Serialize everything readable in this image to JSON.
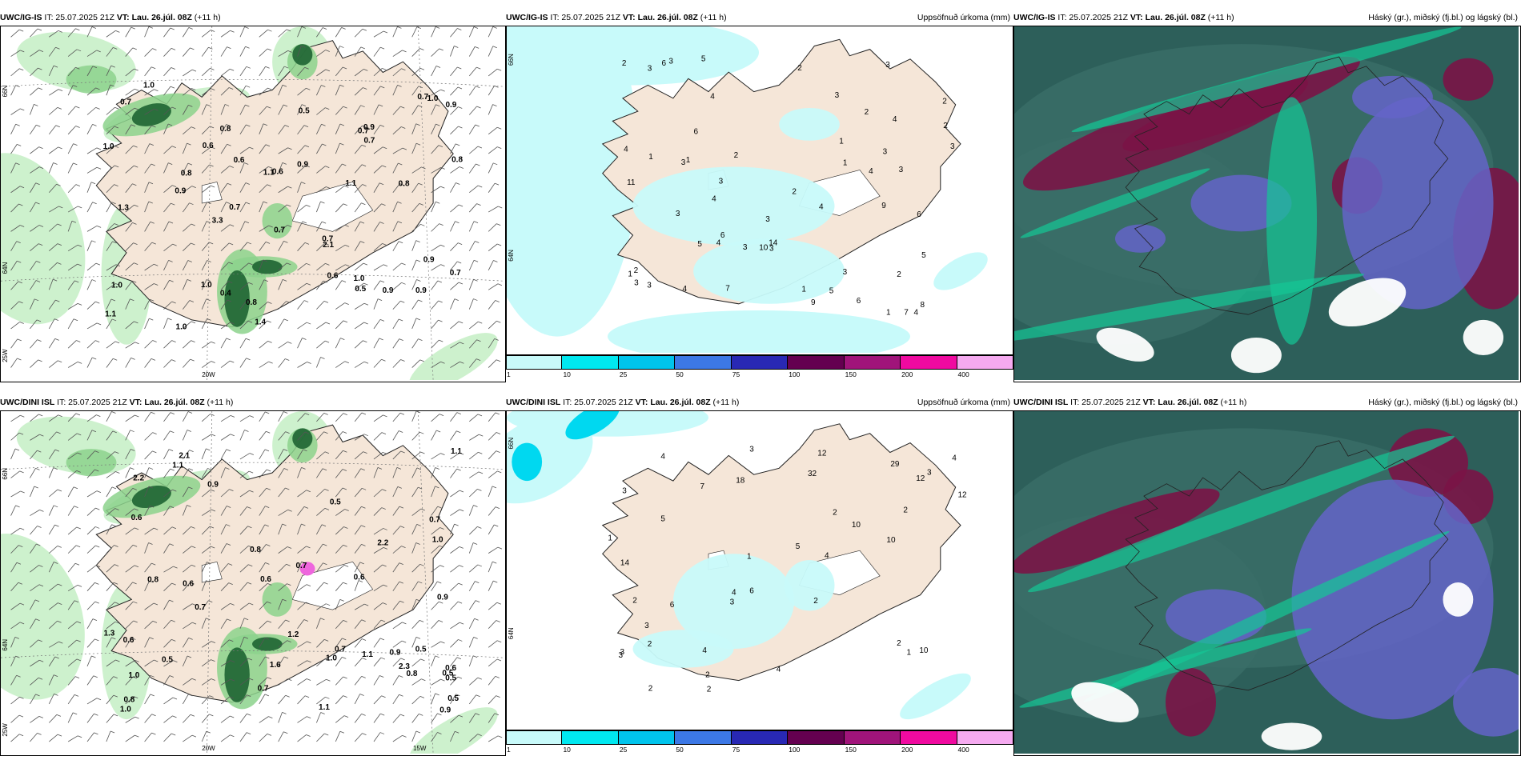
{
  "panels": [
    {
      "model": "UWC/IG-IS",
      "it": "IT: 25.07.2025 21Z",
      "vt_label": "VT:",
      "vt_value": "Lau. 26.júl. 08Z",
      "offset": "(+11 h)",
      "title": ""
    },
    {
      "model": "UWC/IG-IS",
      "it": "IT: 25.07.2025 21Z",
      "vt_label": "VT:",
      "vt_value": "Lau. 26.júl. 08Z",
      "offset": "(+11 h)",
      "title": "Uppsöfnuð úrkoma (mm)"
    },
    {
      "model": "UWC/IG-IS",
      "it": "IT: 25.07.2025 21Z",
      "vt_label": "VT:",
      "vt_value": "Lau. 26.júl. 08Z",
      "offset": "(+11 h)",
      "title": "Háský (gr.), miðský (fj.bl.) og lágský (bl.)"
    },
    {
      "model": "UWC/DINI ISL",
      "it": "IT: 25.07.2025 21Z",
      "vt_label": "VT:",
      "vt_value": "Lau. 26.júl. 08Z",
      "offset": "(+11 h)",
      "title": ""
    },
    {
      "model": "UWC/DINI ISL",
      "it": "IT: 25.07.2025 21Z",
      "vt_label": "VT:",
      "vt_value": "Lau. 26.júl. 08Z",
      "offset": "(+11 h)",
      "title": "Uppsöfnuð úrkoma (mm)"
    },
    {
      "model": "UWC/DINI ISL",
      "it": "IT: 25.07.2025 21Z",
      "vt_label": "VT:",
      "vt_value": "Lau. 26.júl. 08Z",
      "offset": "(+11 h)",
      "title": "Háský (gr.), miðský (fj.bl.) og lágský (bl.)"
    }
  ],
  "axis_labels": {
    "lat66": "66N",
    "lat64": "64N",
    "lon20": "20W",
    "lon15": "15W",
    "lon25": "25W"
  },
  "colorbar": {
    "ticks": [
      "1",
      "10",
      "25",
      "50",
      "75",
      "100",
      "150",
      "200",
      "400"
    ],
    "colors": [
      "#c8fafa",
      "#00e8f0",
      "#00c4ec",
      "#3c78e6",
      "#2828b4",
      "#640050",
      "#a0147a",
      "#f00aa0",
      "#f5aaf0"
    ]
  },
  "colors": {
    "land": "#f5e6d8",
    "coast": "#222222",
    "precip_light": "#c8f0c8",
    "precip_mid": "#8cd28c",
    "precip_dark": "#1e6432",
    "precip_field": "#c8fafa",
    "cloud_high": "#2d5f5a",
    "cloud_mid": "#7a1446",
    "cloud_low": "#6464c8",
    "cloud_edge": "#14c896"
  },
  "numbers": {
    "p0": [
      "0.8",
      "0.8",
      "0.9",
      "1.0",
      "1.1",
      "0.6",
      "0.8",
      "1.1",
      "0.6",
      "1.0",
      "1.0",
      "1.1",
      "0.9",
      "0.9",
      "1.0",
      "0.7",
      "0.4",
      "0.5",
      "0.9",
      "0.9",
      "0.7",
      "0.7",
      "0.7",
      "1.0",
      "0.5",
      "0.7",
      "1.0",
      "0.6",
      "0.8",
      "0.7",
      "1.0",
      "0.8",
      "0.9",
      "1.3",
      "0.6",
      "2.1",
      "0.7",
      "0.7",
      "0.9",
      "1.4",
      "3.3"
    ],
    "p1": [
      "3",
      "3",
      "6",
      "9",
      "4",
      "4",
      "10",
      "4",
      "4",
      "4",
      "3",
      "2",
      "2",
      "1",
      "3",
      "3",
      "2",
      "3",
      "2",
      "2",
      "7",
      "1",
      "5",
      "5",
      "2",
      "1",
      "1",
      "2",
      "4",
      "1",
      "6",
      "3",
      "3",
      "5",
      "2",
      "4",
      "1",
      "3",
      "3",
      "7",
      "11",
      "8",
      "6",
      "6",
      "3",
      "3",
      "14",
      "6",
      "5",
      "3",
      "9",
      "3",
      "4",
      "3",
      "2",
      "1",
      "4",
      "3"
    ],
    "p3": [
      "0.8",
      "0.5",
      "0.5",
      "0.6",
      "0.9",
      "0.9",
      "1.1",
      "1.1",
      "0.8",
      "0.7",
      "0.8",
      "0.8",
      "0.7",
      "1.0",
      "0.5",
      "0.5",
      "0.9",
      "0.6",
      "1.1",
      "1.2",
      "1.6",
      "0.7",
      "0.5",
      "0.7",
      "0.5",
      "1.0",
      "1.1",
      "0.9",
      "2.3",
      "1.3",
      "2.2",
      "0.7",
      "1.0",
      "0.6",
      "0.6",
      "2.2",
      "0.6",
      "1.0",
      "0.6",
      "2.1"
    ],
    "p4": [
      "32",
      "12",
      "12",
      "18",
      "2",
      "3",
      "4",
      "1",
      "2",
      "7",
      "2",
      "2",
      "3",
      "4",
      "29",
      "10",
      "10",
      "14",
      "12",
      "10",
      "5",
      "4",
      "6",
      "4",
      "3",
      "3",
      "4",
      "3",
      "6",
      "3",
      "2",
      "1",
      "2",
      "2",
      "3",
      "2",
      "1",
      "2",
      "4",
      "5"
    ]
  }
}
